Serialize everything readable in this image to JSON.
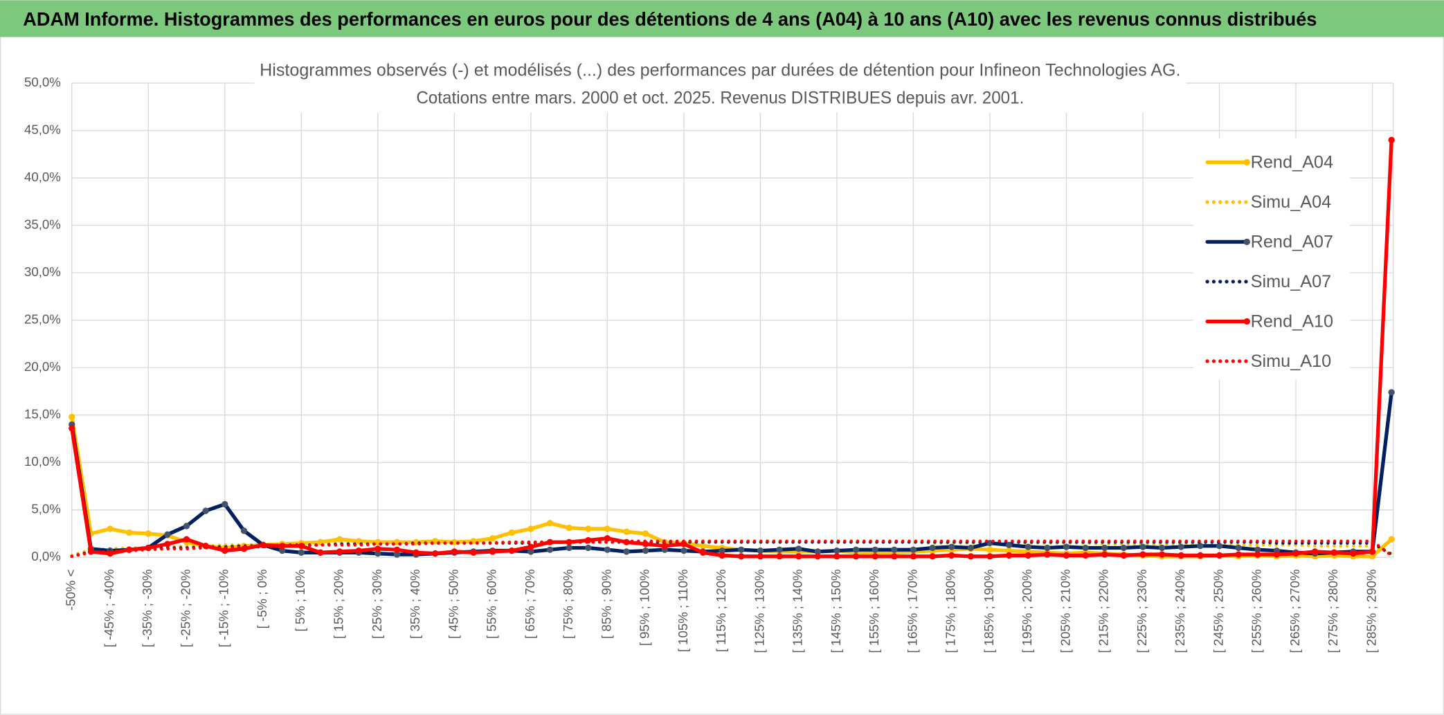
{
  "header": {
    "title": "ADAM Informe. Histogrammes des performances en euros pour des détentions de 4 ans (A04) à 10 ans (A10) avec les revenus connus distribués"
  },
  "chart_data": {
    "type": "line",
    "title": "Histogrammes observés (-) et modélisés (...) des performances par durées de détention pour Infineon Technologies AG.",
    "subtitle": "Cotations entre mars. 2000 et oct. 2025. Revenus DISTRIBUES depuis avr. 2001.",
    "categories": [
      "-50% <",
      null,
      "[ -45% ; -40%",
      null,
      "[ -35% ; -30%",
      null,
      "[ -25% ; -20%",
      null,
      "[ -15% ; -10%",
      null,
      "[ -5% ; 0%",
      null,
      "[ 5% ; 10%",
      null,
      "[ 15% ; 20%",
      null,
      "[ 25% ; 30%",
      null,
      "[ 35% ; 40%",
      null,
      "[ 45% ; 50%",
      null,
      "[ 55% ; 60%",
      null,
      "[ 65% ; 70%",
      null,
      "[ 75% ; 80%",
      null,
      "[ 85% ; 90%",
      null,
      "[ 95% ; 100%",
      null,
      "[ 105% ; 110%",
      null,
      "[ 115% ; 120%",
      null,
      "[ 125% ; 130%",
      null,
      "[ 135% ; 140%",
      null,
      "[ 145% ; 150%",
      null,
      "[ 155% ; 160%",
      null,
      "[ 165% ; 170%",
      null,
      "[ 175% ; 180%",
      null,
      "[ 185% ; 190%",
      null,
      "[ 195% ; 200%",
      null,
      "[ 205% ; 210%",
      null,
      "[ 215% ; 220%",
      null,
      "[ 225% ; 230%",
      null,
      "[ 235% ; 240%",
      null,
      "[ 245% ; 250%",
      null,
      "[ 255% ; 260%",
      null,
      "[ 265% ; 270%",
      null,
      "[ 275% ; 280%",
      null,
      "[ 285% ; 290%",
      null
    ],
    "series": [
      {
        "name": "Rend_A04",
        "color": "#FFC000",
        "style": "solid",
        "values": [
          14.8,
          2.5,
          3.0,
          2.6,
          2.5,
          2.3,
          1.6,
          1.2,
          1.0,
          1.2,
          1.3,
          1.4,
          1.5,
          1.6,
          1.9,
          1.7,
          1.6,
          1.6,
          1.6,
          1.7,
          1.6,
          1.7,
          2.0,
          2.6,
          3.0,
          3.6,
          3.1,
          3.0,
          3.0,
          2.7,
          2.5,
          1.6,
          1.5,
          1.2,
          1.0,
          0.8,
          0.7,
          0.6,
          0.6,
          0.6,
          0.7,
          0.5,
          0.5,
          0.5,
          0.6,
          0.7,
          0.8,
          0.9,
          0.8,
          0.7,
          0.6,
          0.5,
          0.4,
          0.5,
          0.4,
          0.3,
          0.2,
          0.1,
          0.1,
          0.1,
          0.2,
          0.1,
          0.2,
          0.1,
          0.2,
          0.1,
          0.2,
          0.1,
          0.1,
          1.9
        ]
      },
      {
        "name": "Simu_A04",
        "color": "#FFC000",
        "style": "dotted",
        "values": [
          0.2,
          0.8,
          0.9,
          1.0,
          1.0,
          1.1,
          1.2,
          1.2,
          1.3,
          1.3,
          1.4,
          1.4,
          1.4,
          1.5,
          1.5,
          1.5,
          1.5,
          1.6,
          1.6,
          1.6,
          1.6,
          1.6,
          1.6,
          1.6,
          1.6,
          1.6,
          1.6,
          1.6,
          1.6,
          1.6,
          1.6,
          1.6,
          1.6,
          1.6,
          1.6,
          1.6,
          1.6,
          1.6,
          1.6,
          1.6,
          1.6,
          1.6,
          1.6,
          1.6,
          1.6,
          1.5,
          1.5,
          1.5,
          1.5,
          1.5,
          1.5,
          1.5,
          1.5,
          1.5,
          1.4,
          1.4,
          1.4,
          1.4,
          1.4,
          1.4,
          1.3,
          1.3,
          1.3,
          1.3,
          1.3,
          1.2,
          1.2,
          1.2,
          1.2,
          0.4
        ]
      },
      {
        "name": "Rend_A07",
        "color": "#002060",
        "marker": "#44546A",
        "style": "solid",
        "values": [
          14.0,
          0.9,
          0.7,
          0.8,
          1.0,
          2.4,
          3.3,
          4.9,
          5.6,
          2.8,
          1.3,
          0.7,
          0.5,
          0.5,
          0.5,
          0.5,
          0.4,
          0.3,
          0.3,
          0.4,
          0.5,
          0.6,
          0.7,
          0.7,
          0.6,
          0.8,
          1.0,
          1.0,
          0.8,
          0.6,
          0.7,
          0.8,
          0.7,
          0.6,
          0.7,
          0.8,
          0.7,
          0.8,
          0.9,
          0.6,
          0.7,
          0.8,
          0.8,
          0.8,
          0.8,
          1.0,
          1.1,
          1.0,
          1.5,
          1.3,
          1.1,
          1.0,
          1.1,
          1.0,
          1.0,
          1.0,
          1.1,
          1.0,
          1.1,
          1.2,
          1.2,
          1.0,
          0.8,
          0.7,
          0.5,
          0.4,
          0.5,
          0.6,
          0.6,
          17.4
        ]
      },
      {
        "name": "Simu_A07",
        "color": "#002060",
        "style": "dotted",
        "values": [
          0.1,
          0.6,
          0.7,
          0.8,
          0.9,
          1.0,
          1.0,
          1.1,
          1.1,
          1.2,
          1.2,
          1.3,
          1.3,
          1.3,
          1.4,
          1.4,
          1.4,
          1.4,
          1.5,
          1.5,
          1.5,
          1.5,
          1.5,
          1.5,
          1.5,
          1.6,
          1.6,
          1.6,
          1.6,
          1.6,
          1.6,
          1.6,
          1.6,
          1.6,
          1.6,
          1.6,
          1.6,
          1.6,
          1.6,
          1.6,
          1.6,
          1.6,
          1.6,
          1.6,
          1.6,
          1.6,
          1.6,
          1.6,
          1.6,
          1.6,
          1.6,
          1.6,
          1.6,
          1.6,
          1.6,
          1.6,
          1.6,
          1.6,
          1.6,
          1.6,
          1.6,
          1.6,
          1.6,
          1.5,
          1.5,
          1.5,
          1.5,
          1.5,
          1.5,
          0.3
        ]
      },
      {
        "name": "Rend_A10",
        "color": "#FF0000",
        "style": "solid",
        "values": [
          13.6,
          0.6,
          0.4,
          0.8,
          1.0,
          1.4,
          1.9,
          1.2,
          0.7,
          0.9,
          1.3,
          1.2,
          1.2,
          0.5,
          0.6,
          0.7,
          0.9,
          0.8,
          0.5,
          0.4,
          0.6,
          0.5,
          0.6,
          0.7,
          1.1,
          1.6,
          1.6,
          1.8,
          2.0,
          1.6,
          1.4,
          1.2,
          1.4,
          0.5,
          0.2,
          0.1,
          0.1,
          0.1,
          0.1,
          0.1,
          0.1,
          0.1,
          0.1,
          0.1,
          0.1,
          0.1,
          0.2,
          0.1,
          0.1,
          0.2,
          0.2,
          0.3,
          0.2,
          0.2,
          0.3,
          0.2,
          0.3,
          0.3,
          0.2,
          0.2,
          0.2,
          0.3,
          0.3,
          0.3,
          0.4,
          0.6,
          0.5,
          0.4,
          0.6,
          44.0
        ]
      },
      {
        "name": "Simu_A10",
        "color": "#FF0000",
        "style": "dotted",
        "values": [
          0.1,
          0.5,
          0.6,
          0.7,
          0.8,
          0.9,
          0.9,
          1.0,
          1.0,
          1.1,
          1.1,
          1.2,
          1.2,
          1.3,
          1.3,
          1.3,
          1.4,
          1.4,
          1.4,
          1.5,
          1.5,
          1.5,
          1.5,
          1.6,
          1.6,
          1.6,
          1.6,
          1.6,
          1.6,
          1.7,
          1.7,
          1.7,
          1.7,
          1.7,
          1.7,
          1.7,
          1.7,
          1.7,
          1.7,
          1.7,
          1.7,
          1.7,
          1.7,
          1.7,
          1.7,
          1.7,
          1.7,
          1.7,
          1.7,
          1.7,
          1.7,
          1.7,
          1.7,
          1.7,
          1.7,
          1.7,
          1.7,
          1.7,
          1.7,
          1.7,
          1.7,
          1.7,
          1.7,
          1.7,
          1.7,
          1.7,
          1.7,
          1.7,
          1.7,
          0.2
        ]
      }
    ],
    "ylim": [
      0,
      50
    ],
    "yticks": [
      {
        "value": 0,
        "label": "0,0%"
      },
      {
        "value": 5,
        "label": "5,0%"
      },
      {
        "value": 10,
        "label": "10,0%"
      },
      {
        "value": 15,
        "label": "15,0%"
      },
      {
        "value": 20,
        "label": "20,0%"
      },
      {
        "value": 25,
        "label": "25,0%"
      },
      {
        "value": 30,
        "label": "30,0%"
      },
      {
        "value": 35,
        "label": "35,0%"
      },
      {
        "value": 40,
        "label": "40,0%"
      },
      {
        "value": 45,
        "label": "45,0%"
      },
      {
        "value": 50,
        "label": "50,0%"
      }
    ],
    "grid": true,
    "legend": "right"
  }
}
